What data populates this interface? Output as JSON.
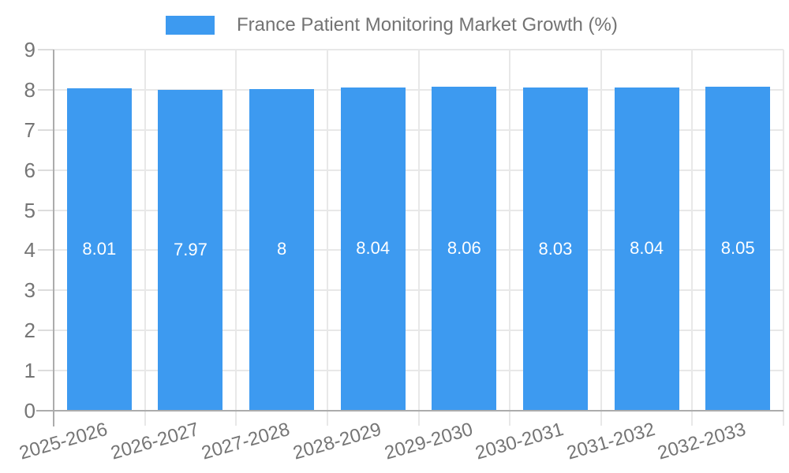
{
  "chart_data": {
    "type": "bar",
    "title": "France Patient Monitoring Market Growth (%)",
    "categories": [
      "2025-2026",
      "2026-2027",
      "2027-2028",
      "2028-2029",
      "2029-2030",
      "2030-2031",
      "2031-2032",
      "2032-2033"
    ],
    "series": [
      {
        "name": "France Patient Monitoring Market Growth (%)",
        "values": [
          8.01,
          7.97,
          8,
          8.04,
          8.06,
          8.03,
          8.04,
          8.05
        ],
        "value_labels": [
          "8.01",
          "7.97",
          "8",
          "8.04",
          "8.06",
          "8.03",
          "8.04",
          "8.05"
        ]
      }
    ],
    "xlabel": "",
    "ylabel": "",
    "ylim": [
      0,
      9
    ],
    "y_ticks": [
      0,
      1,
      2,
      3,
      4,
      5,
      6,
      7,
      8,
      9
    ],
    "grid": true,
    "legend_position": "top",
    "colors": {
      "bar": "#3D9AF0",
      "bar_value_text": "#FFFFFF",
      "axis_line": "#ACACAC",
      "grid_line": "#E8E8E8",
      "tick_line": "#DCDCDC",
      "tick_text": "#757575",
      "legend_text": "#737373",
      "background": "#FFFFFF"
    }
  }
}
